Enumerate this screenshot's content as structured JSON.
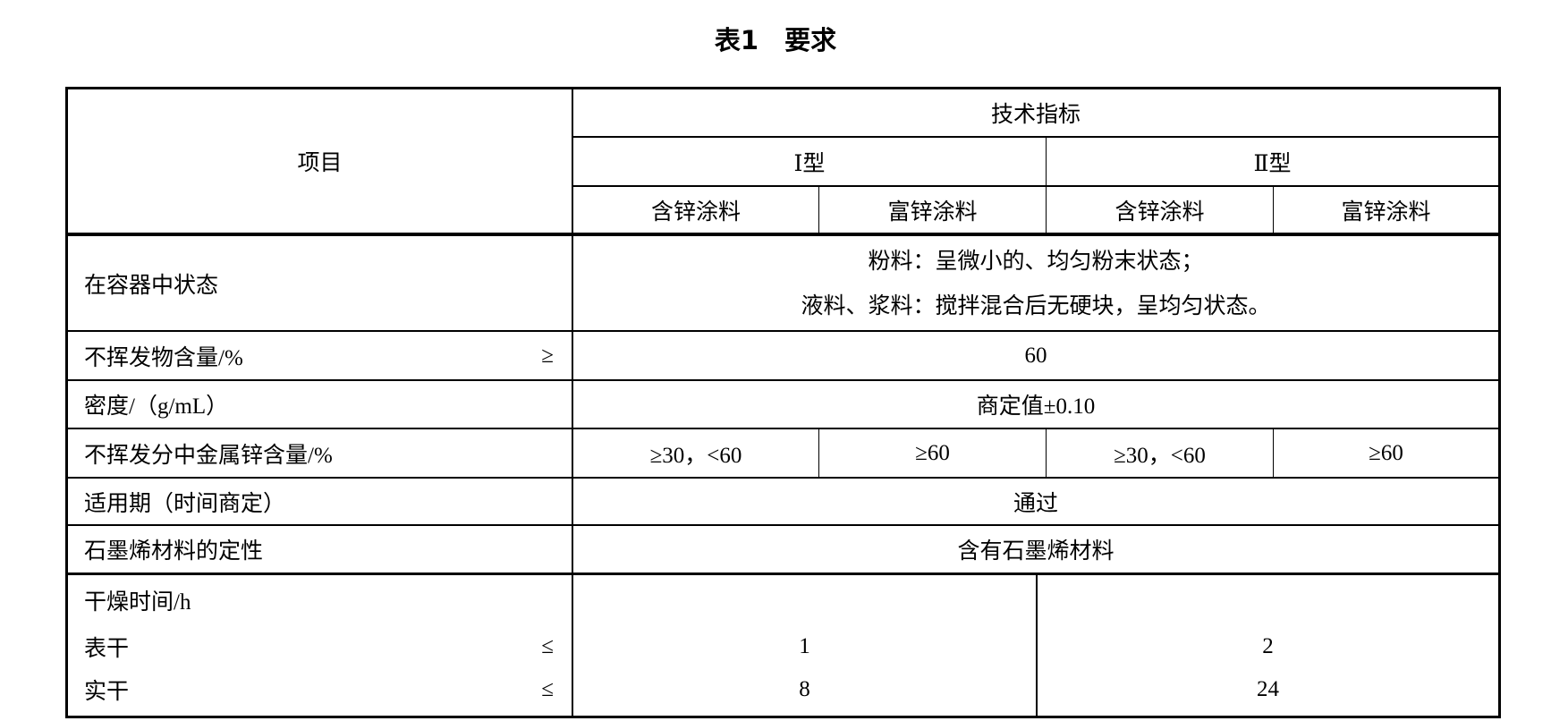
{
  "title": "表1　要求",
  "header": {
    "item": "项目",
    "tech": "技术指标",
    "type1": "Ⅰ型",
    "type2": "Ⅱ型",
    "sub": [
      "含锌涂料",
      "富锌涂料",
      "含锌涂料",
      "富锌涂料"
    ]
  },
  "rows": {
    "state": {
      "label": "在容器中状态",
      "line1": "粉料：呈微小的、均匀粉末状态；",
      "line2": "液料、浆料：搅拌混合后无硬块，呈均匀状态。"
    },
    "nonvol": {
      "label": "不挥发物含量/%",
      "sym": "≥",
      "value": "60"
    },
    "density": {
      "label": "密度/（g/mL）",
      "value": "商定值±0.10"
    },
    "zinc": {
      "label": "不挥发分中金属锌含量/%",
      "values": [
        "≥30，<60",
        "≥60",
        "≥30，<60",
        "≥60"
      ]
    },
    "potlife": {
      "label": "适用期（时间商定）",
      "value": "通过"
    },
    "graphene": {
      "label": "石墨烯材料的定性",
      "value": "含有石墨烯材料"
    },
    "dry": {
      "label": "干燥时间/h",
      "surface": "表干",
      "surface_sym": "≤",
      "surface_values": [
        "1",
        "2"
      ],
      "hard": "实干",
      "hard_sym": "≤",
      "hard_values": [
        "8",
        "24"
      ]
    }
  }
}
